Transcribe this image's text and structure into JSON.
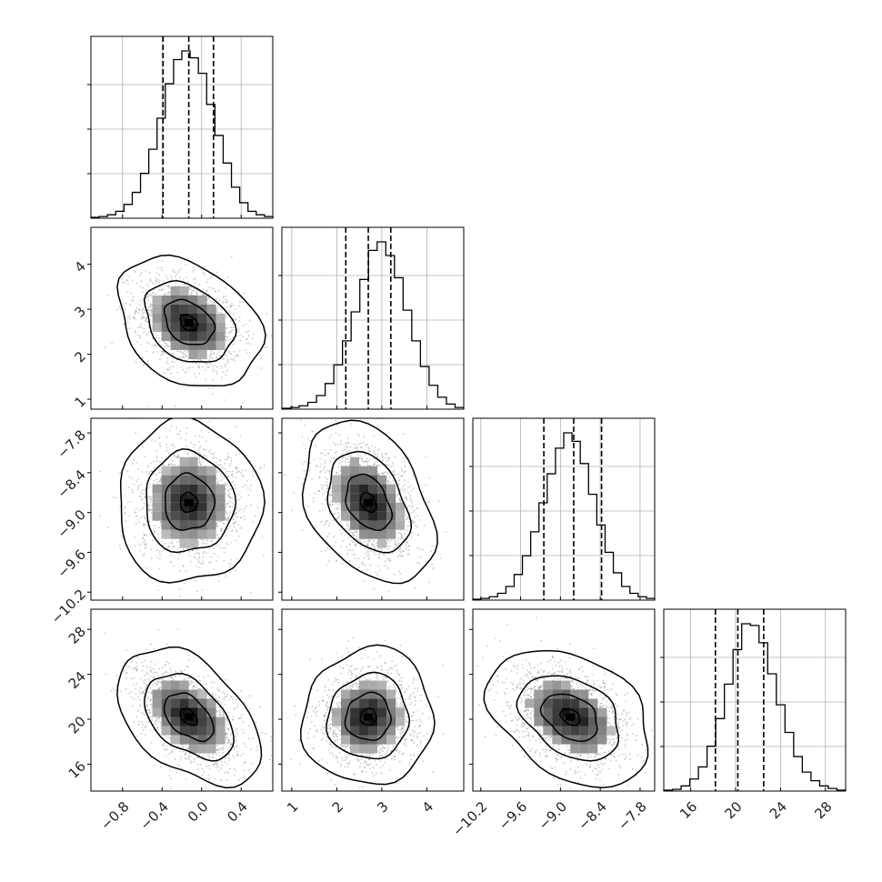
{
  "chart_data": {
    "type": "corner",
    "parameters": [
      {
        "ticks": [
          "−0.8",
          "−0.4",
          "0.0",
          "0.4"
        ],
        "tick_values": [
          -0.8,
          -0.4,
          0.0,
          0.4
        ],
        "range": [
          -1.12,
          0.72
        ],
        "quantiles": [
          -0.39,
          -0.13,
          0.12
        ],
        "hist": [
          0.5,
          1,
          2,
          4,
          8,
          15,
          26,
          40,
          58,
          78,
          92,
          97,
          93,
          84,
          66,
          48,
          32,
          18,
          9,
          4,
          2,
          1
        ],
        "mean": -0.13,
        "sd": 0.25
      },
      {
        "ticks": [
          "1",
          "2",
          "3",
          "4"
        ],
        "tick_values": [
          1,
          2,
          3,
          4
        ],
        "range": [
          0.78,
          4.82
        ],
        "quantiles": [
          2.2,
          2.7,
          3.2
        ],
        "hist": [
          0.5,
          1,
          2,
          4,
          8,
          15,
          26,
          40,
          57,
          76,
          93,
          98,
          90,
          77,
          58,
          40,
          25,
          14,
          7,
          3,
          1
        ],
        "mean": 2.7,
        "sd": 0.5
      },
      {
        "ticks": [
          "−10.2",
          "−9.6",
          "−9.0",
          "−8.4",
          "−7.8"
        ],
        "tick_values": [
          -10.2,
          -9.6,
          -9.0,
          -8.4,
          -7.8
        ],
        "range": [
          -10.32,
          -7.58
        ],
        "quantiles": [
          -9.25,
          -8.8,
          -8.38
        ],
        "hist": [
          0.5,
          1,
          2,
          4,
          8,
          15,
          26,
          40,
          57,
          74,
          89,
          98,
          93,
          80,
          62,
          44,
          28,
          16,
          8,
          4,
          2,
          1
        ],
        "mean": -8.85,
        "sd": 0.42
      },
      {
        "ticks": [
          "16",
          "20",
          "24",
          "28"
        ],
        "tick_values": [
          16,
          20,
          24,
          28
        ],
        "range": [
          13.6,
          29.8
        ],
        "quantiles": [
          18.2,
          20.2,
          22.5
        ],
        "hist": [
          0.5,
          1,
          3,
          7,
          14,
          26,
          42,
          62,
          82,
          97,
          96,
          86,
          68,
          50,
          34,
          20,
          11,
          6,
          3,
          1.5,
          0.5
        ],
        "mean": 20.2,
        "sd": 2.1
      }
    ],
    "correlations": [
      [
        1,
        -0.3,
        0.0,
        -0.45
      ],
      [
        -0.3,
        1,
        -0.35,
        0.05
      ],
      [
        0.0,
        -0.35,
        1,
        -0.35
      ],
      [
        -0.45,
        0.05,
        -0.35,
        1
      ]
    ],
    "quantile_levels": [
      0.16,
      0.5,
      0.84
    ],
    "grid": true,
    "title": "",
    "colors": {
      "line": "#000000",
      "grid": "#b0b0b0",
      "points": "#8c8c8c"
    }
  }
}
